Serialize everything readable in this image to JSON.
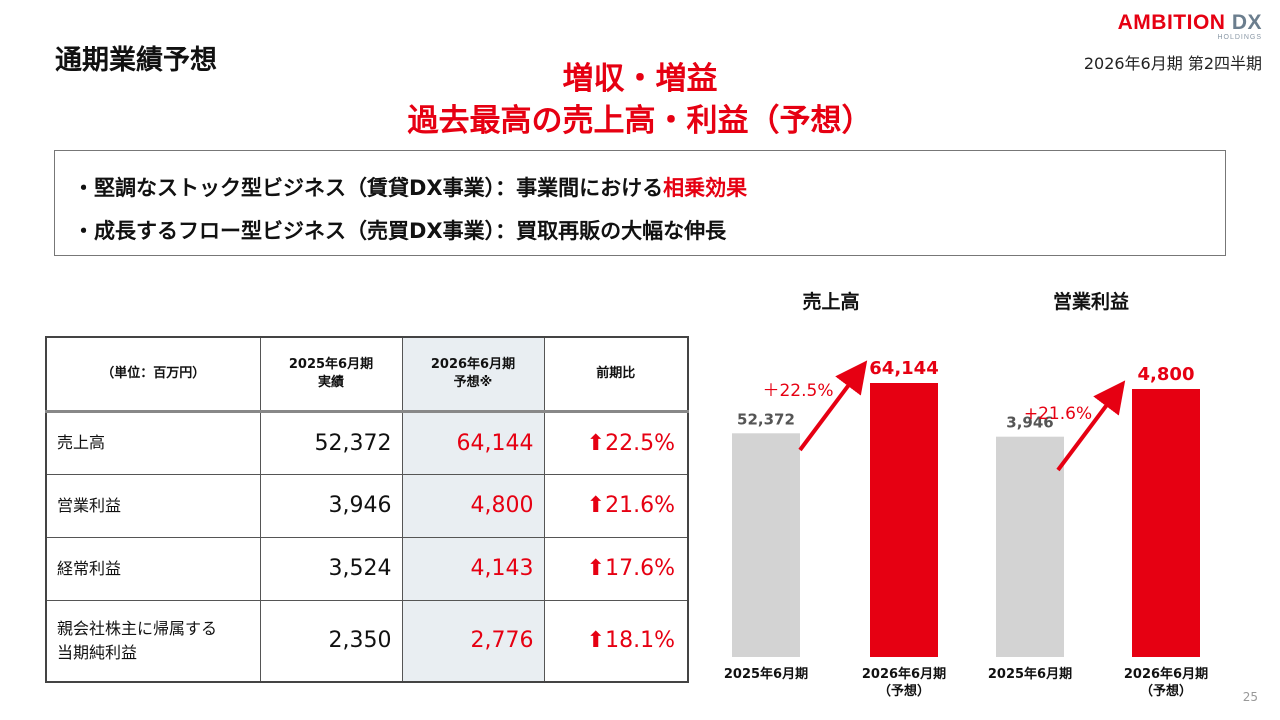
{
  "header": {
    "title": "通期業績予想",
    "period": "2026年6月期 第2四半期",
    "logo_main": "AMBITION",
    "logo_dx": "DX",
    "logo_sub": "HOLDINGS"
  },
  "headline": {
    "line1": "増収・増益",
    "line2": "過去最高の売上高・利益（予想）"
  },
  "summary": {
    "line1_pre": "・堅調なストック型ビジネス（賃貸DX事業）：事業間における",
    "line1_accent": "相乗効果",
    "line2": "・成長するフロー型ビジネス（売買DX事業）：買取再販の大幅な伸長"
  },
  "table": {
    "headers": {
      "unit": "（単位：百万円）",
      "prev_line1": "2025年6月期",
      "prev_line2": "実績",
      "fc_line1": "2026年6月期",
      "fc_line2": "予想※",
      "change": "前期比"
    },
    "rows": [
      {
        "label": "売上高",
        "prev": "52,372",
        "forecast": "64,144",
        "change": "⬆22.5%"
      },
      {
        "label": "営業利益",
        "prev": "3,946",
        "forecast": "4,800",
        "change": "⬆21.6%"
      },
      {
        "label": "経常利益",
        "prev": "3,524",
        "forecast": "4,143",
        "change": "⬆17.6%"
      },
      {
        "label_line1": "親会社株主に帰属する",
        "label_line2": "当期純利益",
        "prev": "2,350",
        "forecast": "2,776",
        "change": "⬆18.1%"
      }
    ]
  },
  "chart_data": [
    {
      "type": "bar",
      "title": "売上高",
      "categories": [
        "2025年6月期",
        "2026年6月期"
      ],
      "category_sublabels": [
        "",
        "（予想）"
      ],
      "values": [
        52372,
        64144
      ],
      "value_labels": [
        "52,372",
        "64,144"
      ],
      "growth_label": "＋22.5%",
      "colors": [
        "#d3d3d3",
        "#e60012"
      ]
    },
    {
      "type": "bar",
      "title": "営業利益",
      "categories": [
        "2025年6月期",
        "2026年6月期"
      ],
      "category_sublabels": [
        "",
        "（予想）"
      ],
      "values": [
        3946,
        4800
      ],
      "value_labels": [
        "3,946",
        "4,800"
      ],
      "growth_label": "+21.6%",
      "colors": [
        "#d3d3d3",
        "#e60012"
      ]
    }
  ],
  "footer": {
    "page_number": "25"
  }
}
